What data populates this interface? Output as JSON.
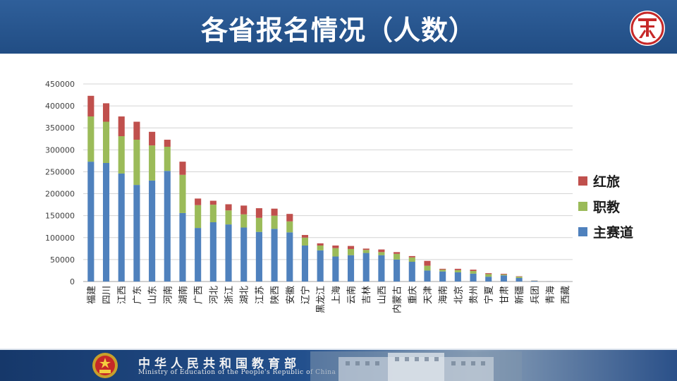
{
  "header": {
    "title": "各省报名情况（人数）"
  },
  "footer": {
    "ministry_cn": "中华人民共和国教育部",
    "ministry_en": "Ministry of Education of the People's Republic of China"
  },
  "colors": {
    "header": "#2a5890",
    "main": "#4f81bd",
    "vocational": "#9bbb59",
    "redtour": "#c0504d"
  },
  "chart_data": {
    "type": "bar",
    "stacked": true,
    "title": "",
    "xlabel": "",
    "ylabel": "",
    "ylim": [
      0,
      450000
    ],
    "yticks": [
      0,
      50000,
      100000,
      150000,
      200000,
      250000,
      300000,
      350000,
      400000,
      450000
    ],
    "grid": true,
    "legend_position": "right",
    "categories": [
      "福建",
      "四川",
      "江西",
      "广东",
      "山东",
      "河南",
      "湖南",
      "广西",
      "河北",
      "浙江",
      "湖北",
      "江苏",
      "陕西",
      "安徽",
      "辽宁",
      "黑龙江",
      "上海",
      "云南",
      "吉林",
      "山西",
      "内蒙古",
      "重庆",
      "天津",
      "海南",
      "北京",
      "贵州",
      "宁夏",
      "甘肃",
      "新疆",
      "兵团",
      "青海",
      "西藏"
    ],
    "series": [
      {
        "name": "主赛道",
        "color": "#4f81bd",
        "values": [
          273000,
          270000,
          246000,
          220000,
          230000,
          252000,
          156000,
          122000,
          135000,
          130000,
          123000,
          113000,
          120000,
          112000,
          82000,
          71000,
          57000,
          60000,
          65000,
          60000,
          50000,
          45000,
          25000,
          23000,
          21000,
          18000,
          11000,
          14000,
          8000,
          1500,
          300,
          200
        ]
      },
      {
        "name": "职教",
        "color": "#9bbb59",
        "values": [
          103000,
          94000,
          85000,
          103000,
          80000,
          55000,
          87000,
          52000,
          40000,
          32000,
          30000,
          32000,
          30000,
          25000,
          18000,
          11000,
          19000,
          14000,
          7000,
          7000,
          13000,
          10000,
          11000,
          4000,
          5000,
          6000,
          6000,
          2000,
          3000,
          500,
          100,
          50
        ]
      },
      {
        "name": "红旅",
        "color": "#c0504d",
        "values": [
          47000,
          42000,
          45000,
          41000,
          31000,
          16000,
          30000,
          15000,
          9000,
          14000,
          20000,
          22000,
          16000,
          17000,
          6000,
          5000,
          6000,
          7000,
          3000,
          6000,
          4000,
          3000,
          11000,
          2000,
          3000,
          3000,
          2000,
          1500,
          1000,
          300,
          100,
          50
        ]
      }
    ]
  }
}
